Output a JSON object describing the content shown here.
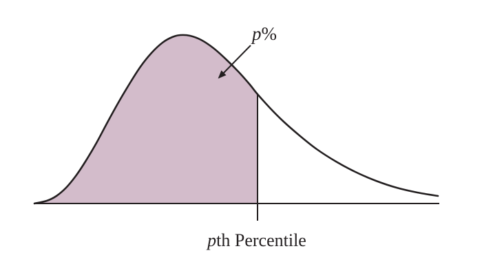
{
  "figure": {
    "callout": {
      "var": "p",
      "suffix": "%"
    },
    "percentile_label": {
      "var": "p",
      "text": "th Percentile"
    },
    "colors": {
      "shaded_region": "#d3bccb",
      "stroke": "#231f20",
      "background": "#ffffff"
    }
  }
}
